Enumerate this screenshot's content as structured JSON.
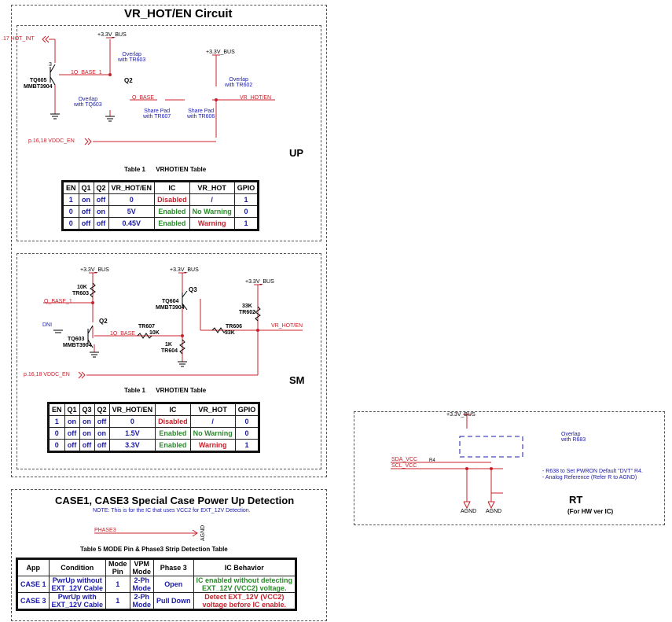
{
  "main_title": "VR_HOT/EN Circuit",
  "up": {
    "section_label": "UP",
    "labels": {
      "hot_int": ".17  HOT_INT",
      "v33_a": "+3.3V_BUS",
      "v33_b": "+3.3V_BUS",
      "q_label": "Q2",
      "tq605": "TQ605",
      "mmbt_a": "MMBT3904",
      "q_base_1": "1Q_BASE_1",
      "overlap_tr603": "Overlap\nwith TR603",
      "overlap_tq603": "Overlap\nwith TQ603",
      "overlap_tr602": "Overlap\nwith TR602",
      "q_base": "Q_BASE",
      "share_tr607": "Share Pad\nwith TR607",
      "share_tr606": "Share Pad\nwith TR606",
      "vr_hot_en": "VR_HOT/EN",
      "vddc_en": "p.16,18  VDDC_EN",
      "pin3": "3",
      "pin1": "1"
    },
    "table_title": "Table 1      VRHOT/EN Table",
    "table": {
      "headers": [
        "EN",
        "Q1",
        "Q2",
        "VR_HOT/EN",
        "IC",
        "VR_HOT",
        "GPIO"
      ],
      "rows": [
        {
          "cells": [
            "1",
            "on",
            "off",
            "0",
            "Disabled",
            "/",
            "1"
          ],
          "colors": [
            "blue",
            "blue",
            "blue",
            "blue",
            "red",
            "blue",
            "blue"
          ]
        },
        {
          "cells": [
            "0",
            "off",
            "on",
            "5V",
            "Enabled",
            "No Warning",
            "0"
          ],
          "colors": [
            "blue",
            "blue",
            "blue",
            "blue",
            "green",
            "green",
            "blue"
          ]
        },
        {
          "cells": [
            "0",
            "off",
            "off",
            "0.45V",
            "Enabled",
            "Warning",
            "1"
          ],
          "colors": [
            "blue",
            "blue",
            "blue",
            "blue",
            "green",
            "red",
            "blue"
          ]
        }
      ]
    }
  },
  "sm": {
    "section_label": "SM",
    "labels": {
      "v33_a": "+3.3V_BUS",
      "v33_b": "+3.3V_BUS",
      "v33_c": "+3.3V_BUS",
      "r10k": "10K",
      "tr603": "TR603",
      "q_base_1": "Q_BASE_1",
      "dni": "DNI",
      "q2": "Q2",
      "tq603": "TQ603",
      "mmbt_a": "MMBT3904",
      "tr607": "TR607",
      "q_base": "1Q_BASE",
      "r10k_b": "10K",
      "r1k": "1K",
      "tr604": "TR604",
      "q3": "Q3",
      "tq604": "TQ604",
      "mmbt_b": "MMBT3904",
      "r33k": "33K",
      "tr602": "TR602",
      "tr606": "TR606",
      "r33k_b": "33K",
      "vr_hot_en": "VR_HOT/EN",
      "vddc_en": "p.16,18  VDDC_EN"
    },
    "table_title": "Table 1      VRHOT/EN Table",
    "table": {
      "headers": [
        "EN",
        "Q1",
        "Q3",
        "Q2",
        "VR_HOT/EN",
        "IC",
        "VR_HOT",
        "GPIO"
      ],
      "rows": [
        {
          "cells": [
            "1",
            "on",
            "on",
            "off",
            "0",
            "Disabled",
            "/",
            "0"
          ],
          "colors": [
            "blue",
            "blue",
            "blue",
            "blue",
            "blue",
            "red",
            "blue",
            "blue"
          ]
        },
        {
          "cells": [
            "0",
            "off",
            "on",
            "on",
            "1.5V",
            "Enabled",
            "No  Warning",
            "0"
          ],
          "colors": [
            "blue",
            "blue",
            "blue",
            "blue",
            "blue",
            "green",
            "green",
            "blue"
          ]
        },
        {
          "cells": [
            "0",
            "off",
            "off",
            "off",
            "3.3V",
            "Enabled",
            "Warning",
            "1"
          ],
          "colors": [
            "blue",
            "blue",
            "blue",
            "blue",
            "blue",
            "green",
            "red",
            "blue"
          ]
        }
      ]
    }
  },
  "case": {
    "title": "CASE1, CASE3 Special  Case Power Up Detection",
    "note": "NOTE: This is for the IC that uses VCC2 for EXT_12V  Detection.",
    "phase3": "PHASE3",
    "agnd": "AGND",
    "table_title": "Table 5   MODE Pin & Phase3 Strip Detection Table",
    "table": {
      "headers": [
        "App",
        "Condition",
        "Mode\nPin",
        "VPM\nMode",
        "Phase 3",
        "IC Behavior"
      ],
      "rows": [
        {
          "cells": [
            "CASE 1",
            "PwrUp without\nEXT_12V Cable",
            "1",
            "2-Ph\nMode",
            "Open",
            "IC enabled without detecting\nEXT_12V (VCC2) voltage."
          ],
          "colors": [
            "blue",
            "blue",
            "blue",
            "blue",
            "blue",
            "green"
          ]
        },
        {
          "cells": [
            "CASE 3",
            "PwrUp with\nEXT_12V Cable",
            "1",
            "2-Ph\nMode",
            "Pull Down",
            "Detect EXT_12V (VCC2)\nvoltage before IC enable."
          ],
          "colors": [
            "blue",
            "blue",
            "blue",
            "blue",
            "blue",
            "red"
          ]
        }
      ]
    }
  },
  "rt": {
    "v33": "+3.3V_BUS",
    "overlap": "Overlap\nwith R683",
    "sda": "SDA_VCC",
    "scl": "SCL_VCC",
    "r4": "R4",
    "note1": "- R638 to Set PWRON  Default \"DVT\" R4.",
    "note2": "- Analog Reference  (Refer R to AGND)",
    "agnd_a": "AGND",
    "agnd_b": "AGND",
    "title": "RT",
    "subtitle": "(For HW ver IC)"
  }
}
